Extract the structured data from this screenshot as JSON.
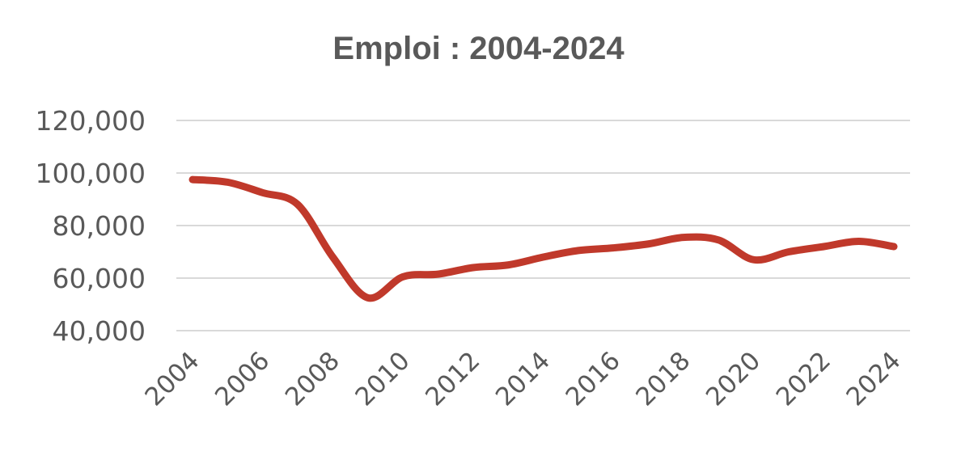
{
  "chart_data": {
    "type": "line",
    "title": "Emploi : 2004-2024",
    "xlabel": "",
    "ylabel": "",
    "x": [
      2004,
      2005,
      2006,
      2007,
      2008,
      2009,
      2010,
      2011,
      2012,
      2013,
      2014,
      2015,
      2016,
      2017,
      2018,
      2019,
      2020,
      2021,
      2022,
      2023,
      2024
    ],
    "series": [
      {
        "name": "",
        "color": "#c0392b",
        "values": [
          97500,
          96500,
          92500,
          88000,
          68000,
          52500,
          60500,
          61500,
          64000,
          65000,
          68000,
          70500,
          71500,
          73000,
          75500,
          74500,
          67000,
          70000,
          72000,
          74000,
          72000
        ]
      }
    ],
    "yticks": [
      "120,000",
      "100,000",
      "80,000",
      "60,000",
      "40,000"
    ],
    "xticks": [
      "2004",
      "2006",
      "2008",
      "2010",
      "2012",
      "2014",
      "2016",
      "2018",
      "2020",
      "2022",
      "2024"
    ],
    "ylim": [
      40000,
      120000
    ],
    "grid": true,
    "legend": "none"
  }
}
